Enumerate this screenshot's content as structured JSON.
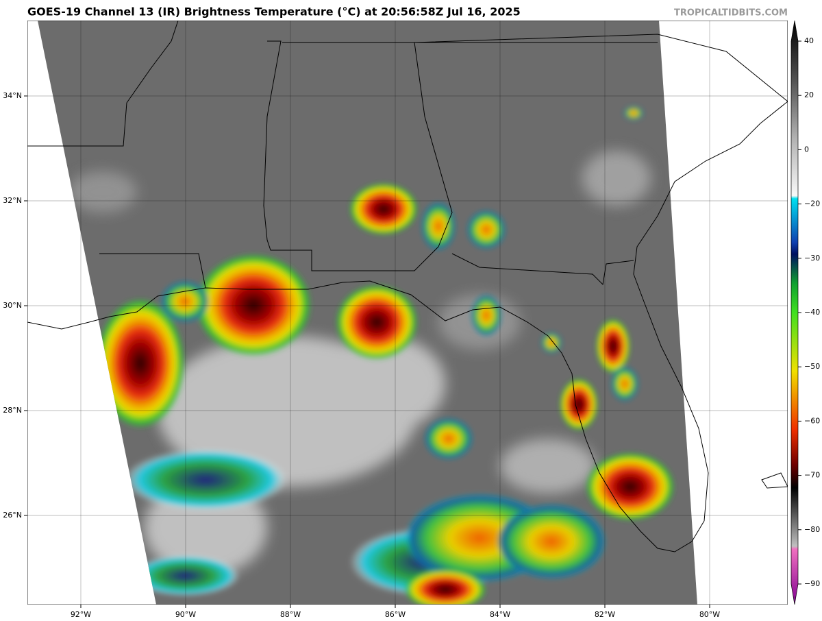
{
  "header": {
    "title": "GOES-19 Channel 13 (IR) Brightness Temperature (°C) at 20:56:58Z Jul 16, 2025",
    "credit": "TROPICALTIDBITS.COM"
  },
  "map": {
    "lat_labels": [
      "34°N",
      "32°N",
      "30°N",
      "28°N",
      "26°N"
    ],
    "lon_labels": [
      "92°W",
      "90°W",
      "88°W",
      "86°W",
      "84°W",
      "82°W",
      "80°W"
    ]
  },
  "colorbar": {
    "ticks": [
      40,
      20,
      0,
      {
        "value": -20,
        "label": "−20"
      },
      {
        "value": -30,
        "label": "−30"
      },
      {
        "value": -40,
        "label": "−40"
      },
      {
        "value": -50,
        "label": "−50"
      },
      {
        "value": -60,
        "label": "−60"
      },
      {
        "value": -70,
        "label": "−70"
      },
      {
        "value": -80,
        "label": "−80"
      },
      {
        "value": -90,
        "label": "−90"
      }
    ]
  }
}
